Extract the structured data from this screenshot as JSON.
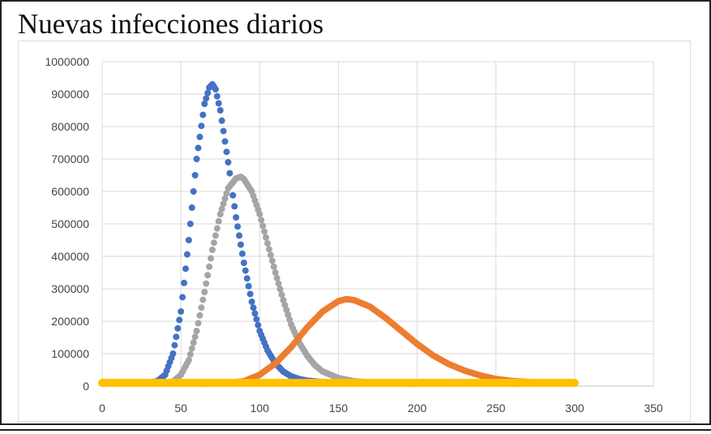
{
  "chart_data": {
    "type": "scatter",
    "title": "Nuevas infecciones diarios",
    "xlabel": "",
    "ylabel": "",
    "xlim": [
      0,
      350
    ],
    "ylim": [
      0,
      1000000
    ],
    "x_ticks": [
      "0",
      "50",
      "100",
      "150",
      "200",
      "250",
      "300",
      "350"
    ],
    "y_ticks": [
      "0",
      "100000",
      "200000",
      "300000",
      "400000",
      "500000",
      "600000",
      "700000",
      "800000",
      "900000",
      "1000000"
    ],
    "grid": true,
    "legend": "none",
    "series": [
      {
        "color": "#4472c4",
        "x": [
          0,
          20,
          30,
          35,
          40,
          45,
          50,
          55,
          60,
          65,
          68,
          70,
          72,
          75,
          80,
          85,
          90,
          95,
          100,
          105,
          110,
          115,
          120,
          125,
          130,
          140,
          150,
          300
        ],
        "y": [
          10000,
          10000,
          11000,
          15000,
          35000,
          100000,
          230000,
          450000,
          700000,
          870000,
          920000,
          930000,
          915000,
          850000,
          690000,
          520000,
          380000,
          260000,
          170000,
          110000,
          70000,
          45000,
          30000,
          22000,
          17000,
          12000,
          10000,
          10000
        ]
      },
      {
        "color": "#a5a5a5",
        "x": [
          0,
          40,
          45,
          50,
          55,
          60,
          65,
          70,
          75,
          80,
          85,
          88,
          90,
          95,
          100,
          105,
          110,
          115,
          120,
          125,
          130,
          135,
          140,
          150,
          160,
          170,
          300
        ],
        "y": [
          10000,
          10000,
          14000,
          35000,
          80000,
          170000,
          290000,
          420000,
          530000,
          610000,
          640000,
          645000,
          638000,
          600000,
          530000,
          440000,
          350000,
          265000,
          190000,
          135000,
          95000,
          65000,
          45000,
          25000,
          15000,
          11000,
          10000
        ]
      },
      {
        "color": "#ed7d31",
        "x": [
          0,
          80,
          90,
          100,
          110,
          120,
          130,
          140,
          150,
          155,
          160,
          170,
          180,
          190,
          200,
          210,
          220,
          230,
          240,
          250,
          260,
          270,
          280,
          290,
          300
        ],
        "y": [
          10000,
          10000,
          15000,
          35000,
          70000,
          120000,
          180000,
          230000,
          262000,
          268000,
          265000,
          245000,
          210000,
          170000,
          130000,
          95000,
          68000,
          48000,
          33000,
          22000,
          16000,
          13000,
          11500,
          10500,
          10000
        ]
      },
      {
        "color": "#ffc000",
        "x": [
          0,
          100,
          200,
          300
        ],
        "y": [
          10000,
          10000,
          10000,
          10000
        ]
      }
    ]
  }
}
